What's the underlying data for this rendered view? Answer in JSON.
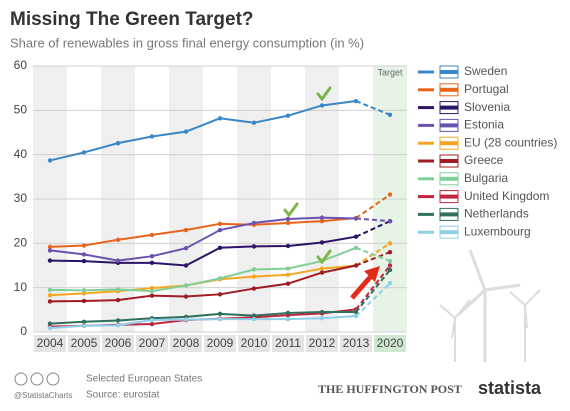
{
  "chart_data": {
    "type": "line",
    "title": "Missing The Green Target?",
    "subtitle": "Share of renewables in gross final energy consumption (in %)",
    "target_label": "Target",
    "categories": [
      "2004",
      "2005",
      "2006",
      "2007",
      "2008",
      "2009",
      "2010",
      "2011",
      "2012",
      "2013",
      "2020"
    ],
    "ylim": [
      0,
      60
    ],
    "yticks": [
      0,
      10,
      20,
      30,
      40,
      50,
      60
    ],
    "grid": true,
    "target_dashed": true,
    "legend": "right",
    "series": [
      {
        "name": "Sweden",
        "color": "#3a87c8",
        "values": [
          38.7,
          40.5,
          42.6,
          44.1,
          45.2,
          48.2,
          47.2,
          48.8,
          51.1,
          52.1,
          49
        ]
      },
      {
        "name": "Portugal",
        "color": "#e8641b",
        "values": [
          19.2,
          19.5,
          20.8,
          21.9,
          23.0,
          24.4,
          24.2,
          24.6,
          25.0,
          25.7,
          31
        ]
      },
      {
        "name": "Slovenia",
        "color": "#2b1467",
        "values": [
          16.1,
          16.0,
          15.6,
          15.6,
          15.0,
          19.0,
          19.3,
          19.4,
          20.2,
          21.5,
          25
        ]
      },
      {
        "name": "Estonia",
        "color": "#6b52b0",
        "values": [
          18.4,
          17.5,
          16.1,
          17.1,
          18.9,
          23.0,
          24.6,
          25.5,
          25.8,
          25.6,
          25
        ]
      },
      {
        "name": "EU (28 countries)",
        "color": "#f5a623",
        "values": [
          8.3,
          8.7,
          9.2,
          9.9,
          10.5,
          11.9,
          12.5,
          12.9,
          14.3,
          15.0,
          20
        ]
      },
      {
        "name": "Greece",
        "color": "#a01c23",
        "values": [
          6.9,
          7.0,
          7.2,
          8.2,
          8.0,
          8.5,
          9.8,
          10.9,
          13.4,
          15.0,
          18
        ]
      },
      {
        "name": "Bulgaria",
        "color": "#7fcf99",
        "values": [
          9.5,
          9.4,
          9.6,
          9.2,
          10.5,
          12.1,
          14.1,
          14.3,
          16.0,
          19.0,
          16
        ]
      },
      {
        "name": "United Kingdom",
        "color": "#c0263f",
        "values": [
          1.2,
          1.4,
          1.6,
          1.8,
          2.7,
          3.0,
          3.3,
          3.8,
          4.2,
          5.1,
          15
        ]
      },
      {
        "name": "Netherlands",
        "color": "#2f6f5c",
        "values": [
          1.9,
          2.3,
          2.6,
          3.1,
          3.4,
          4.1,
          3.7,
          4.3,
          4.5,
          4.5,
          14
        ]
      },
      {
        "name": "Luxembourg",
        "color": "#8fd0e8",
        "values": [
          0.9,
          1.4,
          1.5,
          2.7,
          2.8,
          2.9,
          2.9,
          2.9,
          3.1,
          3.6,
          11
        ]
      }
    ]
  },
  "footer": {
    "handle": "@StatistaCharts",
    "note": "Selected European States",
    "source": "Source: eurostat",
    "partner": "THE HUFFINGTON POST",
    "brand": "statista"
  }
}
